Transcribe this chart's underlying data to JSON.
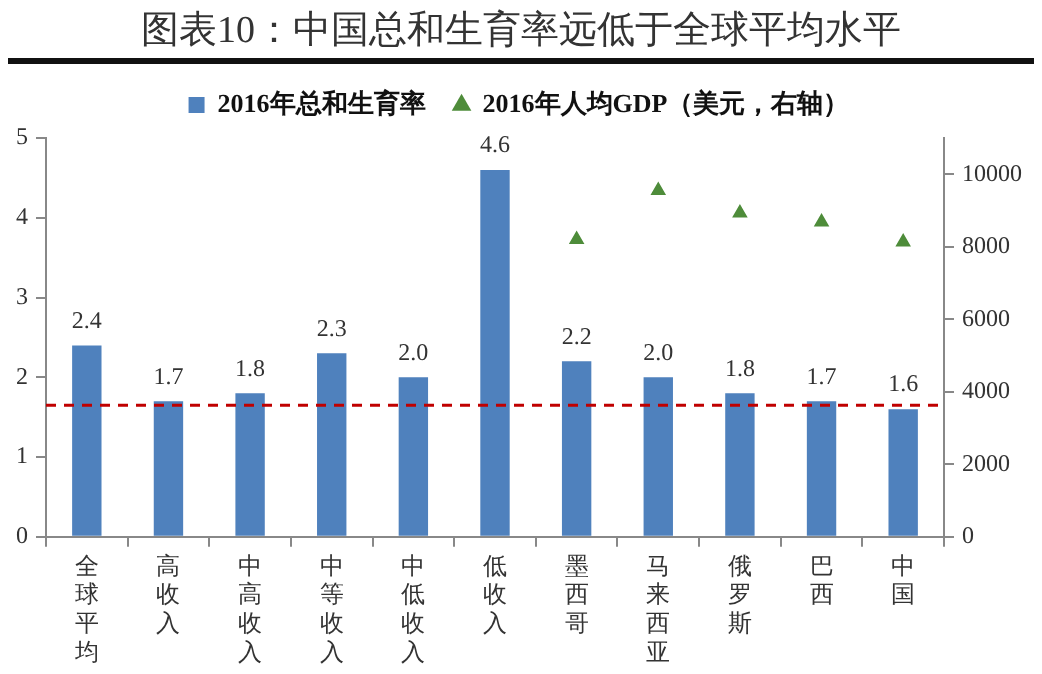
{
  "chart_data": {
    "type": "bar",
    "title": "图表10：中国总和生育率远低于全球平均水平",
    "categories": [
      "全球平均",
      "高收入",
      "中高收入",
      "中等收入",
      "中低收入",
      "低收入",
      "墨西哥",
      "马来西亚",
      "俄罗斯",
      "巴西",
      "中国"
    ],
    "series": [
      {
        "name": "2016年总和生育率",
        "color": "#4f81bd",
        "values": [
          2.4,
          1.7,
          1.8,
          2.3,
          2.0,
          4.6,
          2.2,
          2.0,
          1.8,
          1.7,
          1.6
        ],
        "value_labels": [
          "2.4",
          "1.7",
          "1.8",
          "2.3",
          "2.0",
          "4.6",
          "2.2",
          "2.0",
          "1.8",
          "1.7",
          "1.6"
        ]
      },
      {
        "name": "2016年人均GDP（美元，右轴）",
        "type": "scatter",
        "axis": "y2",
        "color": "#4e8c3a",
        "marker": "triangle",
        "x": [
          "墨西哥",
          "马来西亚",
          "俄罗斯",
          "巴西",
          "中国"
        ],
        "values": [
          8200,
          9550,
          8930,
          8680,
          8130
        ]
      }
    ],
    "ylim": [
      0,
      5
    ],
    "yticks": [
      0,
      1,
      2,
      3,
      4,
      5
    ],
    "y2lim": [
      0,
      11000
    ],
    "y2ticks": [
      0,
      2000,
      4000,
      6000,
      8000,
      10000
    ],
    "ref_lines": [
      {
        "axis": "y",
        "value": 1.65,
        "color": "#c00000",
        "line_style": "dashed"
      }
    ],
    "grid": false,
    "legend": "top"
  }
}
